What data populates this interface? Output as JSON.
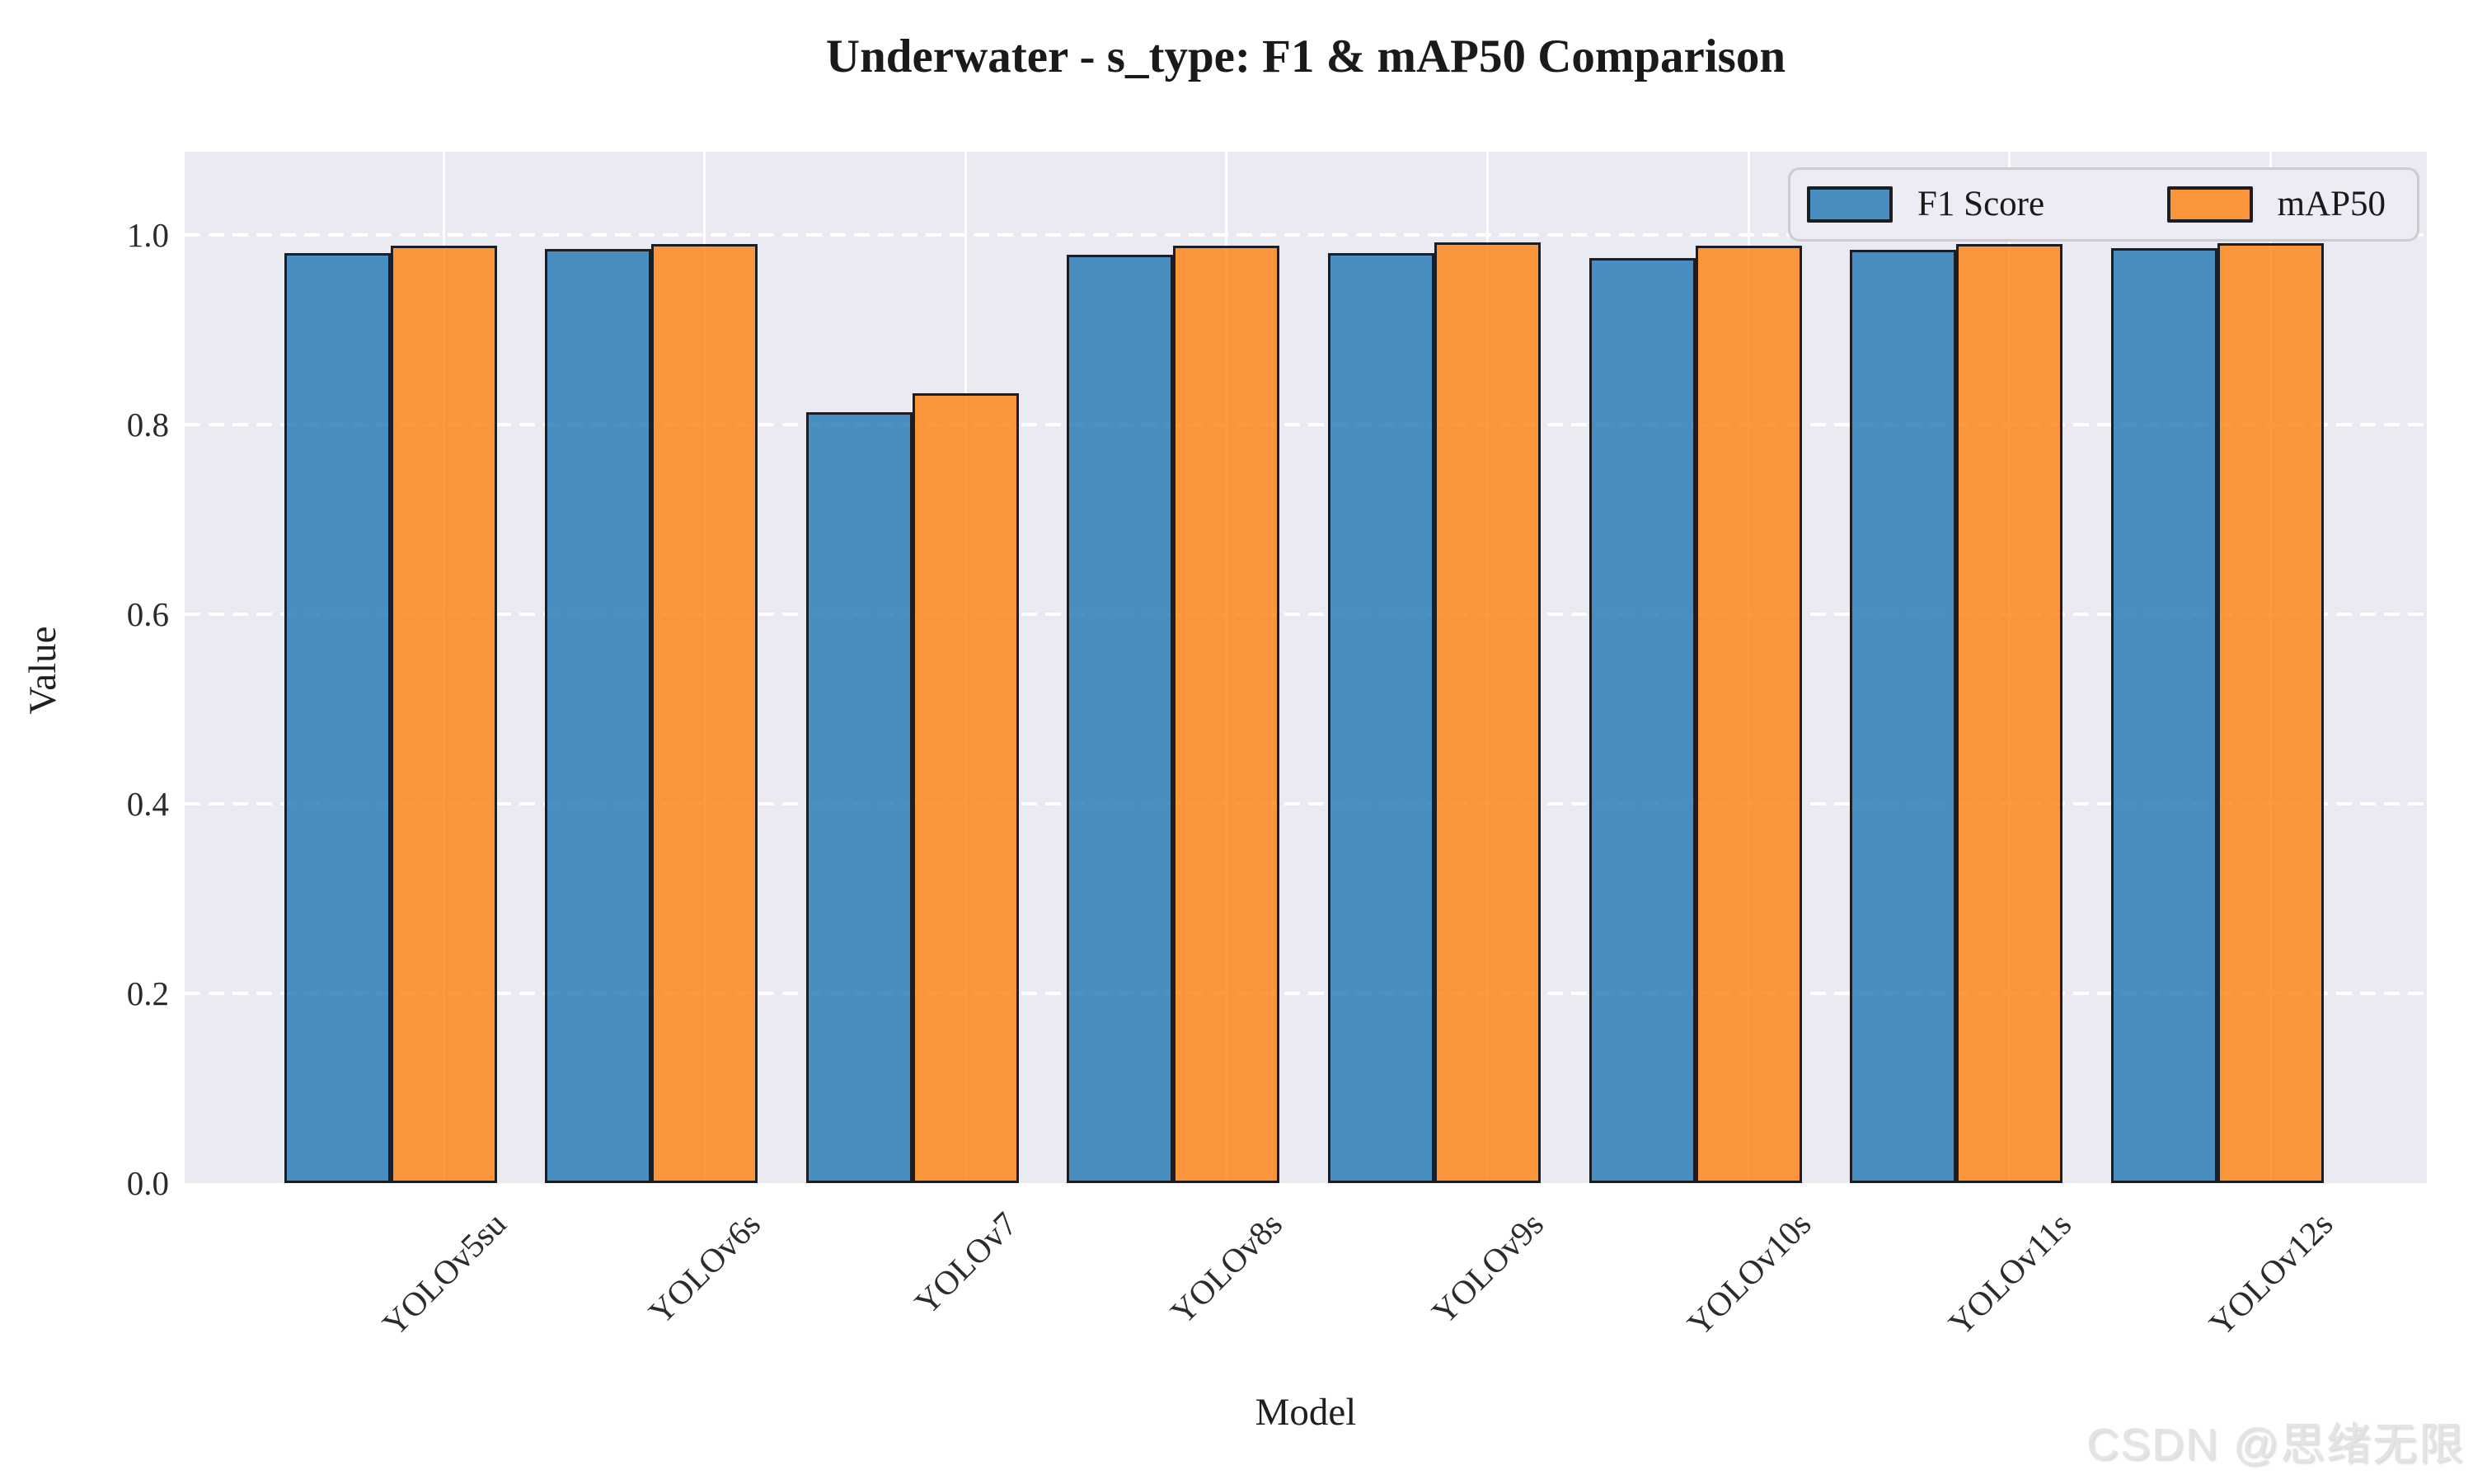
{
  "title": "Underwater - s_type: F1 & mAP50 Comparison",
  "watermark": "CSDN @思绪无限",
  "colors": {
    "plot_background": "#eaeaf2",
    "figure_background": "#ffffff",
    "gridline": "#ffffff",
    "bar_edge": "#1d1d24",
    "f1_bar": "#1f77b4",
    "map50_bar": "#ff7f0e",
    "bar_alpha": 0.8
  },
  "chart_data": {
    "type": "bar",
    "title": "Underwater - s_type: F1 & mAP50 Comparison",
    "xlabel": "Model",
    "ylabel": "Value",
    "categories": [
      "YOLOv5su",
      "YOLOv6s",
      "YOLOv7",
      "YOLOv8s",
      "YOLOv9s",
      "YOLOv10s",
      "YOLOv11s",
      "YOLOv12s"
    ],
    "series": [
      {
        "name": "F1 Score",
        "color": "#1f77b4",
        "values": [
          0.981,
          0.985,
          0.813,
          0.979,
          0.981,
          0.976,
          0.984,
          0.986
        ]
      },
      {
        "name": "mAP50",
        "color": "#ff7f0e",
        "values": [
          0.989,
          0.99,
          0.833,
          0.989,
          0.992,
          0.989,
          0.99,
          0.991
        ]
      }
    ],
    "ylim": [
      0,
      1.087
    ],
    "yticks": [
      "0.0",
      "0.2",
      "0.4",
      "0.6",
      "0.8",
      "1.0"
    ],
    "grid": {
      "horizontal": "white dashed",
      "vertical": "white solid"
    },
    "legend_position": "upper right",
    "xtick_rotation": 45
  }
}
